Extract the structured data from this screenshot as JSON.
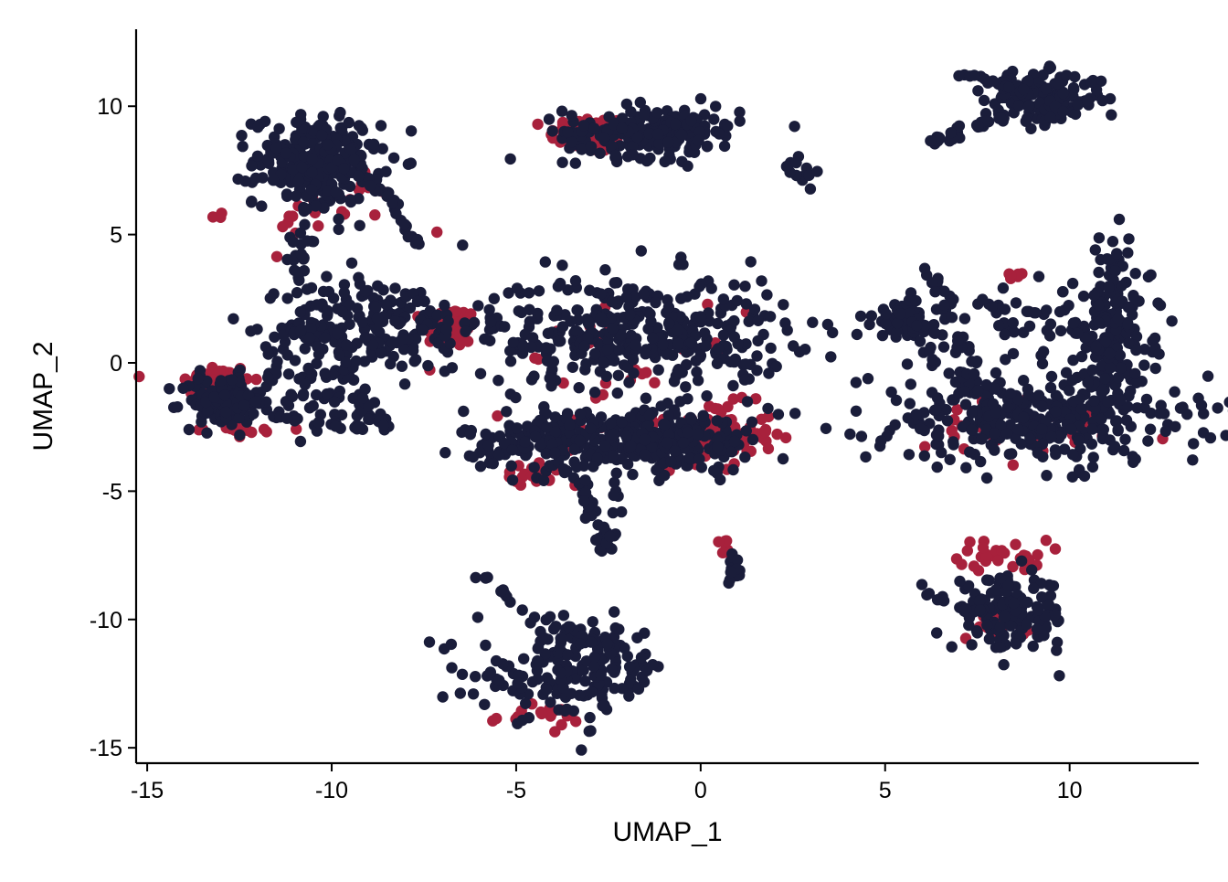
{
  "chart_data": {
    "type": "scatter",
    "title": "",
    "xlabel": "UMAP_1",
    "ylabel": "UMAP_2",
    "xlim": [
      -15.3,
      13.5
    ],
    "ylim": [
      -15.6,
      13.0
    ],
    "xticks": [
      -15,
      -10,
      -5,
      0,
      5,
      10
    ],
    "yticks": [
      -15,
      -10,
      -5,
      0,
      5,
      10
    ],
    "xtick_labels": [
      "-15",
      "-10",
      "-5",
      "0",
      "5",
      "10"
    ],
    "ytick_labels": [
      "-15",
      "-10",
      "-5",
      "0",
      "5",
      "10"
    ],
    "grid": false,
    "legend": "none",
    "colors": {
      "red": "#a8213c",
      "navy": "#1a1d3a"
    },
    "series": [
      {
        "color": "#a8213c",
        "clusters": [
          {
            "center": [
              -3.0,
              8.9
            ],
            "spread": [
              0.55,
              0.35
            ],
            "n": 90
          },
          {
            "center": [
              -13.2,
              -0.7
            ],
            "spread": [
              0.5,
              0.35
            ],
            "n": 50
          },
          {
            "center": [
              -6.8,
              1.4
            ],
            "spread": [
              0.35,
              0.4
            ],
            "n": 70
          },
          {
            "center": [
              0.4,
              -2.8
            ],
            "spread": [
              0.8,
              0.6
            ],
            "n": 90
          },
          {
            "center": [
              -4.5,
              -4.3
            ],
            "spread": [
              0.5,
              0.2
            ],
            "n": 20
          },
          {
            "center": [
              8.2,
              -7.5
            ],
            "spread": [
              0.6,
              0.3
            ],
            "n": 30
          },
          {
            "center": [
              8.0,
              -10.2
            ],
            "spread": [
              0.5,
              0.3
            ],
            "n": 20
          },
          {
            "center": [
              -4.5,
              -13.8
            ],
            "spread": [
              0.6,
              0.2
            ],
            "n": 20
          },
          {
            "center": [
              0.6,
              -7.2
            ],
            "spread": [
              0.15,
              0.2
            ],
            "n": 10
          },
          {
            "center": [
              8.6,
              3.4
            ],
            "spread": [
              0.2,
              0.1
            ],
            "n": 6
          },
          {
            "center": [
              -10.5,
              6.0
            ],
            "spread": [
              1.2,
              0.8
            ],
            "n": 25
          },
          {
            "center": [
              -2.0,
              -1.0
            ],
            "spread": [
              1.5,
              1.5
            ],
            "n": 40
          },
          {
            "center": [
              9.0,
              -2.8
            ],
            "spread": [
              2.0,
              0.7
            ],
            "n": 30
          },
          {
            "center": [
              -12.5,
              -2.6
            ],
            "spread": [
              0.8,
              0.1
            ],
            "n": 15
          }
        ]
      },
      {
        "color": "#1a1d3a",
        "clusters": [
          {
            "center": [
              -10.4,
              7.9
            ],
            "spread": [
              0.85,
              0.85
            ],
            "n": 240
          },
          {
            "center": [
              -13.0,
              -1.5
            ],
            "spread": [
              0.55,
              0.5
            ],
            "n": 110
          },
          {
            "center": [
              -8.6,
              1.5
            ],
            "spread": [
              1.3,
              0.9
            ],
            "n": 160
          },
          {
            "center": [
              -10.3,
              -0.5
            ],
            "spread": [
              0.9,
              1.2
            ],
            "n": 80
          },
          {
            "center": [
              -1.3,
              9.0
            ],
            "spread": [
              1.2,
              0.5
            ],
            "n": 210
          },
          {
            "center": [
              9.3,
              10.3
            ],
            "spread": [
              0.8,
              0.5
            ],
            "n": 140
          },
          {
            "center": [
              -1.8,
              1.2
            ],
            "spread": [
              2.1,
              1.1
            ],
            "n": 380
          },
          {
            "center": [
              -3.2,
              -3.0
            ],
            "spread": [
              1.6,
              0.6
            ],
            "n": 260
          },
          {
            "center": [
              -0.5,
              -3.0
            ],
            "spread": [
              0.9,
              0.6
            ],
            "n": 130
          },
          {
            "center": [
              9.2,
              -2.2
            ],
            "spread": [
              2.3,
              0.9
            ],
            "n": 360
          },
          {
            "center": [
              11.2,
              1.5
            ],
            "spread": [
              0.5,
              1.6
            ],
            "n": 150
          },
          {
            "center": [
              5.6,
              1.7
            ],
            "spread": [
              0.6,
              0.4
            ],
            "n": 50
          },
          {
            "center": [
              8.5,
              1.5
            ],
            "spread": [
              1.8,
              0.7
            ],
            "n": 60
          },
          {
            "center": [
              8.4,
              -9.8
            ],
            "spread": [
              0.8,
              0.7
            ],
            "n": 150
          },
          {
            "center": [
              -3.5,
              -12.0
            ],
            "spread": [
              1.3,
              0.9
            ],
            "n": 180
          },
          {
            "center": [
              0.9,
              -8.0
            ],
            "spread": [
              0.15,
              0.3
            ],
            "n": 15
          },
          {
            "center": [
              2.7,
              7.2
            ],
            "spread": [
              0.2,
              0.3
            ],
            "n": 12
          }
        ],
        "paths": [
          {
            "points": [
              [
                -10.5,
                7.2
              ],
              [
                -10.8,
                4.5
              ],
              [
                -10.8,
                2.5
              ]
            ],
            "n": 35,
            "spread": 0.12
          },
          {
            "points": [
              [
                -9.8,
                7.8
              ],
              [
                -8.5,
                6.5
              ],
              [
                -7.6,
                4.4
              ]
            ],
            "n": 30,
            "spread": 0.08
          },
          {
            "points": [
              [
                -12.3,
                -1.8
              ],
              [
                -11.0,
                0.8
              ],
              [
                -9.5,
                2.5
              ]
            ],
            "n": 30,
            "spread": 0.15
          },
          {
            "points": [
              [
                -9.8,
                1.0
              ],
              [
                -9.0,
                -2.0
              ],
              [
                -8.2,
                -2.5
              ]
            ],
            "n": 25,
            "spread": 0.15
          },
          {
            "points": [
              [
                -12.3,
                -2.0
              ],
              [
                -10.5,
                -2.3
              ],
              [
                -9.0,
                -2.6
              ]
            ],
            "n": 20,
            "spread": 0.05
          },
          {
            "points": [
              [
                -2.2,
                -4.0
              ],
              [
                -2.5,
                -6.5
              ],
              [
                -2.6,
                -7.4
              ]
            ],
            "n": 25,
            "spread": 0.12
          },
          {
            "points": [
              [
                -3.5,
                -3.8
              ],
              [
                -3.2,
                -5.2
              ],
              [
                -2.6,
                -6.8
              ]
            ],
            "n": 18,
            "spread": 0.1
          },
          {
            "points": [
              [
                -6.0,
                -8.3
              ],
              [
                -4.5,
                -9.8
              ],
              [
                -2.5,
                -11.0
              ]
            ],
            "n": 30,
            "spread": 0.12
          },
          {
            "points": [
              [
                5.7,
                8.5
              ],
              [
                7.0,
                9.0
              ],
              [
                8.6,
                9.8
              ]
            ],
            "n": 30,
            "spread": 0.1
          },
          {
            "points": [
              [
                7.0,
                11.2
              ],
              [
                8.0,
                11.0
              ],
              [
                8.8,
                10.6
              ]
            ],
            "n": 20,
            "spread": 0.1
          },
          {
            "points": [
              [
                6.2,
                -9.0
              ],
              [
                7.0,
                -9.5
              ],
              [
                7.8,
                -9.8
              ]
            ],
            "n": 12,
            "spread": 0.08
          },
          {
            "points": [
              [
                5.5,
                2.0
              ],
              [
                6.6,
                -0.4
              ],
              [
                8.0,
                -1.0
              ]
            ],
            "n": 25,
            "spread": 0.15
          },
          {
            "points": [
              [
                6.0,
                4.1
              ],
              [
                6.8,
                1.5
              ],
              [
                7.5,
                -0.5
              ]
            ],
            "n": 20,
            "spread": 0.12
          },
          {
            "points": [
              [
                7.5,
                2.4
              ],
              [
                10.0,
                1.5
              ],
              [
                11.0,
                0.5
              ]
            ],
            "n": 20,
            "spread": 0.12
          },
          {
            "points": [
              [
                -10.0,
                7.0
              ],
              [
                -9.0,
                2.5
              ],
              [
                -8.0,
                1.5
              ]
            ],
            "n": 20,
            "spread": 0.12
          }
        ]
      }
    ]
  }
}
